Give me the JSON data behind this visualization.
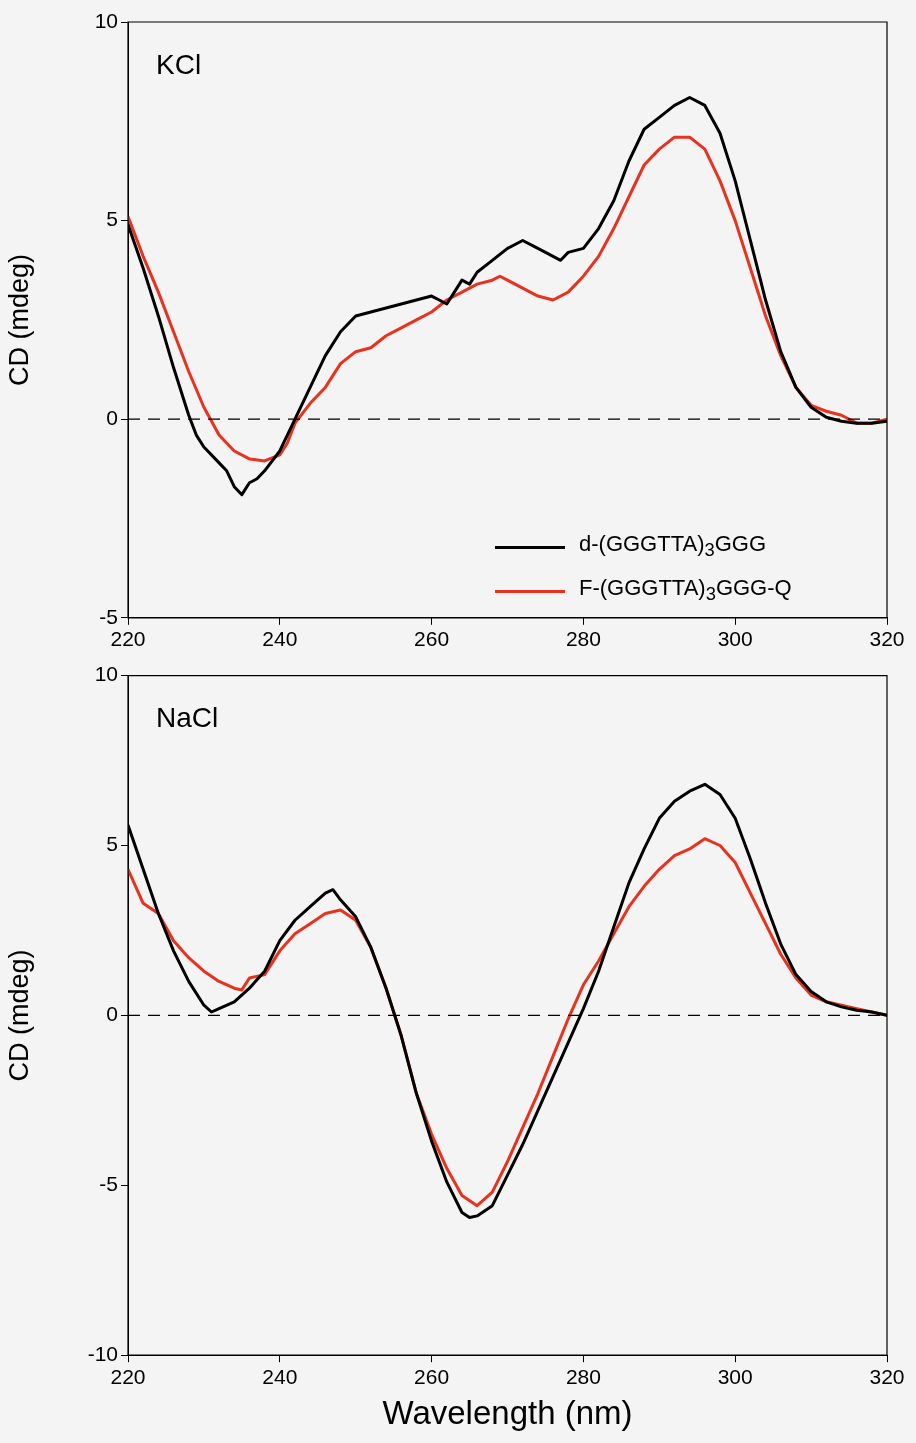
{
  "chart_data": [
    {
      "type": "line",
      "ylabel": "CD (mdeg)",
      "annotations": [
        "KCl"
      ],
      "legend": "bottom right",
      "xlim": [
        220,
        320
      ],
      "xticks": [
        220,
        240,
        260,
        280,
        300,
        320
      ],
      "ylim": [
        -5,
        10
      ],
      "yticks": [
        -5,
        0,
        5,
        10
      ],
      "ref_lines": [
        {
          "axis": "y",
          "value": 0,
          "color": "#000000",
          "line_style": "dashed"
        }
      ],
      "series": [
        {
          "name": "d-(GGGTTA)$_{3}$GGG",
          "color": "#000000",
          "x": [
            220,
            222,
            224,
            226,
            228,
            229,
            230,
            232,
            233,
            234,
            235,
            236,
            237,
            238,
            240,
            242,
            244,
            246,
            248,
            250,
            252,
            254,
            256,
            258,
            260,
            261,
            262,
            263,
            264,
            265,
            266,
            268,
            270,
            272,
            274,
            276,
            277,
            278,
            280,
            282,
            284,
            286,
            288,
            290,
            292,
            294,
            296,
            298,
            300,
            302,
            304,
            306,
            308,
            310,
            312,
            314,
            316,
            318,
            320
          ],
          "values": [
            4.9,
            3.8,
            2.6,
            1.3,
            0.1,
            -0.4,
            -0.7,
            -1.1,
            -1.3,
            -1.7,
            -1.9,
            -1.6,
            -1.5,
            -1.3,
            -0.8,
            0,
            0.8,
            1.6,
            2.2,
            2.6,
            2.7,
            2.8,
            2.9,
            3.0,
            3.1,
            3.0,
            2.9,
            3.2,
            3.5,
            3.4,
            3.7,
            4.0,
            4.3,
            4.5,
            4.3,
            4.1,
            4.0,
            4.2,
            4.3,
            4.8,
            5.5,
            6.5,
            7.3,
            7.6,
            7.9,
            8.1,
            7.9,
            7.2,
            6.0,
            4.5,
            3.0,
            1.7,
            0.8,
            0.3,
            0.05,
            -0.05,
            -0.1,
            -0.1,
            -0.05
          ]
        },
        {
          "name": "F-(GGGTTA)$_{3}$GGG-Q",
          "color": "#e8321e",
          "x": [
            220,
            222,
            224,
            226,
            228,
            230,
            232,
            234,
            236,
            238,
            240,
            241,
            242,
            244,
            246,
            248,
            250,
            252,
            254,
            256,
            258,
            260,
            262,
            264,
            266,
            268,
            269,
            270,
            272,
            274,
            276,
            278,
            280,
            282,
            284,
            286,
            288,
            290,
            292,
            294,
            296,
            298,
            300,
            302,
            304,
            306,
            308,
            310,
            312,
            314,
            316,
            318,
            320
          ],
          "values": [
            5.1,
            4.1,
            3.2,
            2.2,
            1.2,
            0.3,
            -0.4,
            -0.8,
            -1.0,
            -1.05,
            -0.9,
            -0.6,
            -0.1,
            0.4,
            0.8,
            1.4,
            1.7,
            1.8,
            2.1,
            2.3,
            2.5,
            2.7,
            3.0,
            3.2,
            3.4,
            3.5,
            3.6,
            3.5,
            3.3,
            3.1,
            3.0,
            3.2,
            3.6,
            4.1,
            4.8,
            5.6,
            6.4,
            6.8,
            7.1,
            7.1,
            6.8,
            6.0,
            5.0,
            3.8,
            2.6,
            1.6,
            0.8,
            0.35,
            0.2,
            0.1,
            -0.1,
            -0.1,
            0
          ]
        }
      ]
    },
    {
      "type": "line",
      "xlabel": "Wavelength (nm)",
      "ylabel": "CD (mdeg)",
      "annotations": [
        "NaCl"
      ],
      "xlim": [
        220,
        320
      ],
      "xticks": [
        220,
        240,
        260,
        280,
        300,
        320
      ],
      "ylim": [
        -10,
        10
      ],
      "yticks": [
        -10,
        -5,
        0,
        5,
        10
      ],
      "ref_lines": [
        {
          "axis": "y",
          "value": 0,
          "color": "#000000",
          "line_style": "dashed"
        }
      ],
      "series": [
        {
          "color": "#000000",
          "x": [
            220,
            222,
            224,
            226,
            228,
            230,
            231,
            232,
            234,
            236,
            238,
            240,
            242,
            244,
            246,
            247,
            248,
            250,
            252,
            254,
            256,
            258,
            260,
            262,
            264,
            265,
            266,
            268,
            270,
            272,
            274,
            276,
            278,
            280,
            282,
            284,
            286,
            288,
            290,
            292,
            294,
            296,
            298,
            300,
            302,
            304,
            306,
            308,
            310,
            312,
            314,
            316,
            318,
            320
          ],
          "values": [
            5.6,
            4.3,
            3.0,
            1.9,
            1.0,
            0.3,
            0.1,
            0.2,
            0.4,
            0.8,
            1.3,
            2.2,
            2.8,
            3.2,
            3.6,
            3.7,
            3.4,
            2.9,
            2.0,
            0.8,
            -0.6,
            -2.3,
            -3.7,
            -4.9,
            -5.8,
            -5.95,
            -5.9,
            -5.6,
            -4.7,
            -3.8,
            -2.8,
            -1.8,
            -0.8,
            0.2,
            1.3,
            2.6,
            3.9,
            4.9,
            5.8,
            6.3,
            6.6,
            6.8,
            6.5,
            5.8,
            4.6,
            3.3,
            2.1,
            1.2,
            0.7,
            0.4,
            0.25,
            0.15,
            0.1,
            0
          ]
        },
        {
          "color": "#e8321e",
          "x": [
            220,
            222,
            224,
            226,
            228,
            230,
            232,
            234,
            235,
            236,
            238,
            240,
            242,
            244,
            246,
            248,
            250,
            252,
            254,
            256,
            258,
            260,
            262,
            264,
            266,
            268,
            270,
            272,
            274,
            276,
            278,
            280,
            282,
            284,
            286,
            288,
            290,
            292,
            294,
            296,
            298,
            300,
            302,
            304,
            306,
            308,
            310,
            312,
            314,
            316,
            318,
            320
          ],
          "values": [
            4.3,
            3.3,
            3.0,
            2.2,
            1.7,
            1.3,
            1.0,
            0.8,
            0.75,
            1.1,
            1.2,
            1.9,
            2.4,
            2.7,
            3.0,
            3.1,
            2.8,
            2.0,
            0.8,
            -0.6,
            -2.3,
            -3.5,
            -4.5,
            -5.3,
            -5.6,
            -5.2,
            -4.3,
            -3.3,
            -2.3,
            -1.2,
            -0.1,
            0.9,
            1.6,
            2.4,
            3.2,
            3.8,
            4.3,
            4.7,
            4.9,
            5.2,
            5.0,
            4.5,
            3.6,
            2.7,
            1.8,
            1.1,
            0.6,
            0.4,
            0.3,
            0.2,
            0.1,
            0
          ]
        }
      ]
    }
  ]
}
